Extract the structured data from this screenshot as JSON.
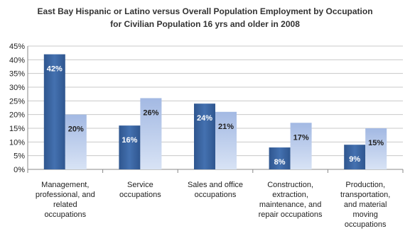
{
  "chart_data": {
    "type": "bar",
    "title": "East Bay Hispanic or Latino versus Overall Population Employment by Occupation",
    "subtitle": "for Civilian Population 16 yrs and older in 2008",
    "categories": [
      [
        "Management,",
        "professional, and",
        "related",
        "occupations"
      ],
      [
        "Service",
        "occupations"
      ],
      [
        "Sales and office",
        "occupations"
      ],
      [
        "Construction,",
        "extraction,",
        "maintenance, and",
        "repair occupations"
      ],
      [
        "Production,",
        "transportation,",
        "and material",
        "moving",
        "occupations"
      ]
    ],
    "series": [
      {
        "values": [
          42,
          16,
          24,
          8,
          9
        ],
        "labels": [
          "42%",
          "16%",
          "24%",
          "8%",
          "9%"
        ],
        "color": "#3d67a3"
      },
      {
        "values": [
          20,
          26,
          21,
          17,
          15
        ],
        "labels": [
          "20%",
          "26%",
          "21%",
          "17%",
          "15%"
        ],
        "color": "#a9bfe6"
      }
    ],
    "yticks": [
      "0%",
      "5%",
      "10%",
      "15%",
      "20%",
      "25%",
      "30%",
      "35%",
      "40%",
      "45%"
    ],
    "ylim": [
      0,
      45
    ],
    "grid": true,
    "legend": "none"
  }
}
